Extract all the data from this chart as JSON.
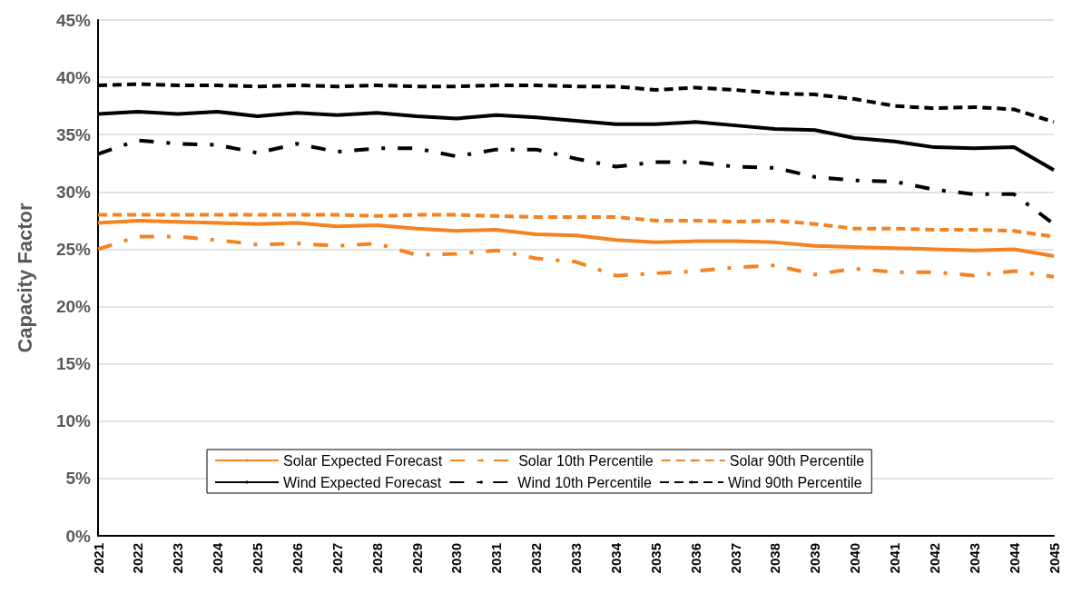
{
  "chart_data": {
    "type": "line",
    "ylabel": "Capacity Factor",
    "categories": [
      "2021",
      "2022",
      "2023",
      "2024",
      "2025",
      "2026",
      "2027",
      "2028",
      "2029",
      "2030",
      "2031",
      "2032",
      "2033",
      "2034",
      "2035",
      "2036",
      "2037",
      "2038",
      "2039",
      "2040",
      "2041",
      "2042",
      "2043",
      "2044",
      "2045"
    ],
    "series": [
      {
        "name": "Solar Expected Forecast",
        "color": "#f58220",
        "line_style": "solid",
        "values": [
          27.3,
          27.5,
          27.4,
          27.3,
          27.2,
          27.3,
          27.0,
          27.1,
          26.8,
          26.6,
          26.7,
          26.3,
          26.2,
          25.8,
          25.6,
          25.7,
          25.7,
          25.6,
          25.3,
          25.2,
          25.1,
          25.0,
          24.9,
          25.0,
          24.4
        ]
      },
      {
        "name": "Solar 10th Percentile",
        "color": "#f58220",
        "line_style": "dashdot",
        "values": [
          25.0,
          26.1,
          26.1,
          25.8,
          25.4,
          25.5,
          25.3,
          25.5,
          24.5,
          24.6,
          24.9,
          24.2,
          23.9,
          22.7,
          22.9,
          23.1,
          23.4,
          23.6,
          22.8,
          23.3,
          23.0,
          23.0,
          22.7,
          23.1,
          22.6
        ]
      },
      {
        "name": "Solar 90th Percentile",
        "color": "#f58220",
        "line_style": "dashed",
        "values": [
          28.0,
          28.0,
          28.0,
          28.0,
          28.0,
          28.0,
          28.0,
          27.9,
          28.0,
          28.0,
          27.9,
          27.8,
          27.8,
          27.8,
          27.5,
          27.5,
          27.4,
          27.5,
          27.2,
          26.8,
          26.8,
          26.7,
          26.7,
          26.6,
          26.1
        ]
      },
      {
        "name": "Wind Expected Forecast",
        "color": "#000000",
        "line_style": "solid",
        "values": [
          36.8,
          37.0,
          36.8,
          37.0,
          36.6,
          36.9,
          36.7,
          36.9,
          36.6,
          36.4,
          36.7,
          36.5,
          36.2,
          35.9,
          35.9,
          36.1,
          35.8,
          35.5,
          35.4,
          34.7,
          34.4,
          33.9,
          33.8,
          33.9,
          31.9
        ]
      },
      {
        "name": "Wind 10th Percentile",
        "color": "#000000",
        "line_style": "dashdot",
        "values": [
          33.3,
          34.5,
          34.2,
          34.1,
          33.4,
          34.2,
          33.5,
          33.8,
          33.8,
          33.1,
          33.7,
          33.7,
          32.9,
          32.2,
          32.6,
          32.6,
          32.2,
          32.1,
          31.3,
          31.0,
          30.9,
          30.2,
          29.8,
          29.8,
          27.2
        ]
      },
      {
        "name": "Wind 90th Percentile",
        "color": "#000000",
        "line_style": "dashed",
        "values": [
          39.3,
          39.4,
          39.3,
          39.3,
          39.2,
          39.3,
          39.2,
          39.3,
          39.2,
          39.2,
          39.3,
          39.3,
          39.2,
          39.2,
          38.9,
          39.1,
          38.9,
          38.6,
          38.5,
          38.1,
          37.5,
          37.3,
          37.4,
          37.2,
          36.1
        ]
      }
    ],
    "ylim": [
      0,
      45
    ],
    "yticks": [
      {
        "value": 0,
        "label": "0%"
      },
      {
        "value": 5,
        "label": "5%"
      },
      {
        "value": 10,
        "label": "10%"
      },
      {
        "value": 15,
        "label": "15%"
      },
      {
        "value": 20,
        "label": "20%"
      },
      {
        "value": 25,
        "label": "25%"
      },
      {
        "value": 30,
        "label": "30%"
      },
      {
        "value": 35,
        "label": "35%"
      },
      {
        "value": 40,
        "label": "40%"
      },
      {
        "value": 45,
        "label": "45%"
      }
    ],
    "grid": "y",
    "legend": "bottom",
    "marker": "none"
  }
}
